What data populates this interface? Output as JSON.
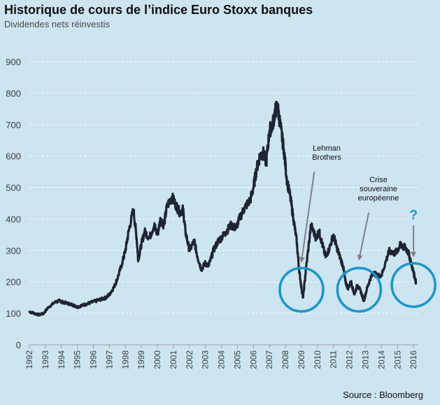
{
  "header": {
    "title": "Historique de cours de l’indice Euro Stoxx banques",
    "subtitle": "Dividendes nets réinvestis"
  },
  "footer": {
    "source": "Source : Bloomberg"
  },
  "colors": {
    "background": "#cde4f1",
    "line": "#1f2433",
    "circle": "#1b96c9",
    "arrow": "#808080",
    "gridline": "#ffffff"
  },
  "chart_data": {
    "type": "line",
    "title": "Historique de cours de l’indice Euro Stoxx banques",
    "subtitle": "Dividendes nets réinvestis",
    "xlabel": "",
    "ylabel": "",
    "ylim": [
      0,
      900
    ],
    "xlim": [
      1992,
      2016.3
    ],
    "grid": "horizontal dashed",
    "legend": "none",
    "y_ticks": [
      0,
      100,
      200,
      300,
      400,
      500,
      600,
      700,
      800,
      900
    ],
    "x_ticks": [
      1992,
      1993,
      1994,
      1995,
      1996,
      1997,
      1998,
      1999,
      2000,
      2001,
      2002,
      2003,
      2004,
      2005,
      2006,
      2007,
      2008,
      2009,
      2010,
      2011,
      2012,
      2013,
      2014,
      2015,
      2016
    ],
    "series": [
      {
        "x": [
          1992.0,
          1992.3,
          1992.6,
          1992.9,
          1993.2,
          1993.6,
          1993.9,
          1994.1,
          1994.5,
          1994.8,
          1995.0,
          1995.3,
          1995.6,
          1995.9,
          1996.2,
          1996.5,
          1996.8,
          1997.0,
          1997.3,
          1997.5,
          1997.8,
          1998.0,
          1998.2,
          1998.5,
          1998.7,
          1998.8,
          1999.0,
          1999.2,
          1999.5,
          1999.8,
          2000.0,
          2000.2,
          2000.4,
          2000.6,
          2000.9,
          2001.1,
          2001.4,
          2001.6,
          2001.75,
          2002.0,
          2002.3,
          2002.5,
          2002.75,
          2003.0,
          2003.2,
          2003.5,
          2003.8,
          2004.0,
          2004.3,
          2004.6,
          2004.9,
          2005.2,
          2005.5,
          2005.8,
          2006.0,
          2006.2,
          2006.4,
          2006.6,
          2006.8,
          2007.0,
          2007.2,
          2007.35,
          2007.5,
          2007.7,
          2007.9,
          2008.1,
          2008.3,
          2008.5,
          2008.7,
          2008.85,
          2009.0,
          2009.1,
          2009.3,
          2009.6,
          2009.9,
          2010.1,
          2010.3,
          2010.5,
          2010.7,
          2011.0,
          2011.2,
          2011.4,
          2011.6,
          2011.75,
          2011.9,
          2012.1,
          2012.3,
          2012.5,
          2012.7,
          2012.9,
          2013.1,
          2013.3,
          2013.5,
          2013.7,
          2014.0,
          2014.3,
          2014.5,
          2014.8,
          2015.0,
          2015.2,
          2015.35,
          2015.5,
          2015.7,
          2015.85,
          2016.0,
          2016.1,
          2016.15
        ],
        "values": [
          105,
          100,
          95,
          100,
          120,
          135,
          140,
          135,
          130,
          125,
          120,
          125,
          130,
          135,
          140,
          145,
          150,
          160,
          185,
          210,
          260,
          300,
          360,
          430,
          340,
          270,
          320,
          360,
          340,
          380,
          350,
          400,
          380,
          440,
          470,
          450,
          420,
          430,
          360,
          300,
          330,
          280,
          240,
          260,
          250,
          300,
          330,
          340,
          360,
          380,
          370,
          410,
          440,
          460,
          500,
          560,
          600,
          610,
          580,
          680,
          700,
          740,
          760,
          690,
          620,
          520,
          470,
          400,
          330,
          240,
          180,
          150,
          250,
          380,
          340,
          360,
          320,
          280,
          300,
          350,
          310,
          280,
          250,
          200,
          180,
          200,
          160,
          190,
          170,
          140,
          180,
          210,
          230,
          220,
          220,
          270,
          300,
          290,
          300,
          320,
          310,
          310,
          290,
          260,
          230,
          210,
          200
        ]
      }
    ],
    "annotations": [
      {
        "label": "Lehman Brothers",
        "x": 2009.0,
        "y": 230
      },
      {
        "label": "Crise souveraine européenne",
        "x": 2012.5,
        "y": 260
      },
      {
        "label": "?",
        "x": 2016.0,
        "y": 280
      }
    ]
  }
}
